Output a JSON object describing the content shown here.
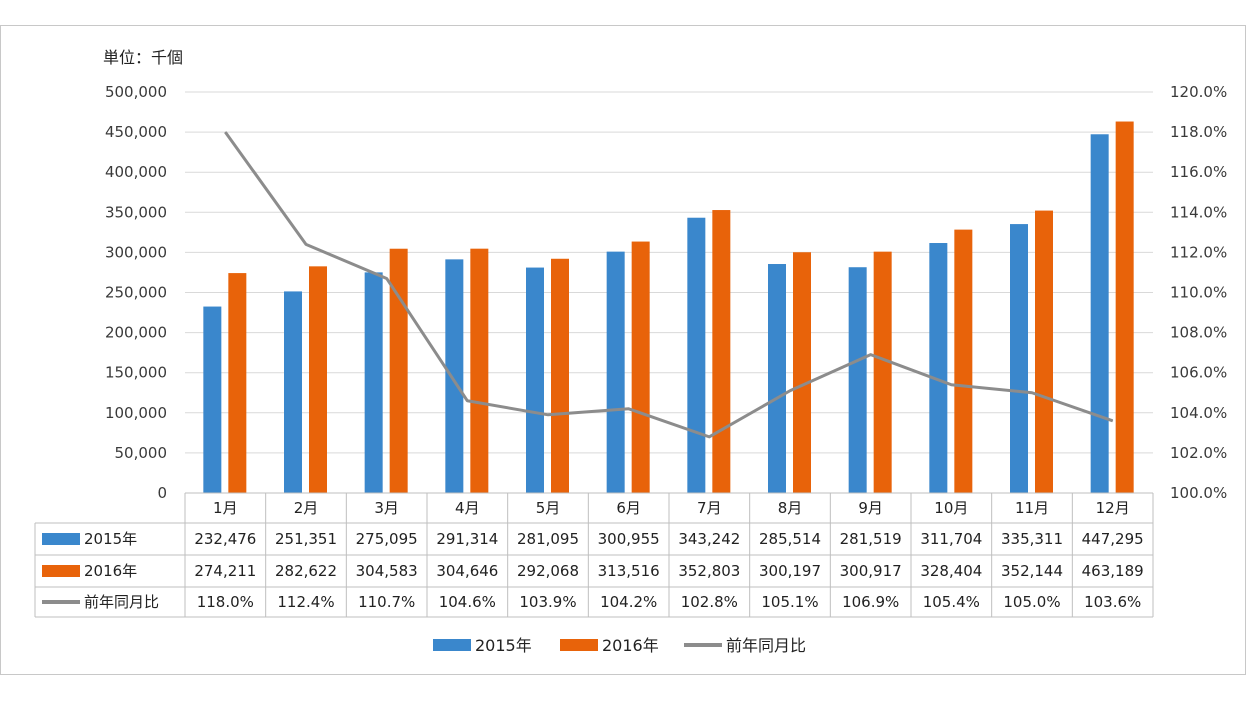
{
  "chart_data": {
    "type": "bar",
    "unit_label": "単位：千個",
    "categories": [
      "1月",
      "2月",
      "3月",
      "4月",
      "5月",
      "6月",
      "7月",
      "8月",
      "9月",
      "10月",
      "11月",
      "12月"
    ],
    "series": [
      {
        "name": "2015年",
        "type": "bar",
        "axis": "left",
        "color": "#3a87cc",
        "values": [
          232476,
          251351,
          275095,
          291314,
          281095,
          300955,
          343242,
          285514,
          281519,
          311704,
          335311,
          447295
        ],
        "labels": [
          "232,476",
          "251,351",
          "275,095",
          "291,314",
          "281,095",
          "300,955",
          "343,242",
          "285,514",
          "281,519",
          "311,704",
          "335,311",
          "447,295"
        ]
      },
      {
        "name": "2016年",
        "type": "bar",
        "axis": "left",
        "color": "#e8630a",
        "values": [
          274211,
          282622,
          304583,
          304646,
          292068,
          313516,
          352803,
          300197,
          300917,
          328404,
          352144,
          463189
        ],
        "labels": [
          "274,211",
          "282,622",
          "304,583",
          "304,646",
          "292,068",
          "313,516",
          "352,803",
          "300,197",
          "300,917",
          "328,404",
          "352,144",
          "463,189"
        ]
      },
      {
        "name": "前年同月比",
        "type": "line",
        "axis": "right",
        "color": "#8c8c8c",
        "values": [
          118.0,
          112.4,
          110.7,
          104.6,
          103.9,
          104.2,
          102.8,
          105.1,
          106.9,
          105.4,
          105.0,
          103.6
        ],
        "labels": [
          "118.0%",
          "112.4%",
          "110.7%",
          "104.6%",
          "103.9%",
          "104.2%",
          "102.8%",
          "105.1%",
          "106.9%",
          "105.4%",
          "105.0%",
          "103.6%"
        ]
      }
    ],
    "y_left": {
      "min": 0,
      "max": 500000,
      "ticks": [
        "0",
        "50,000",
        "100,000",
        "150,000",
        "200,000",
        "250,000",
        "300,000",
        "350,000",
        "400,000",
        "450,000",
        "500,000"
      ]
    },
    "y_right": {
      "min": 100,
      "max": 120,
      "ticks": [
        "100.0%",
        "102.0%",
        "104.0%",
        "106.0%",
        "108.0%",
        "110.0%",
        "112.0%",
        "114.0%",
        "116.0%",
        "118.0%",
        "120.0%"
      ]
    },
    "grid": true,
    "legend_position": "bottom",
    "data_table": true
  }
}
